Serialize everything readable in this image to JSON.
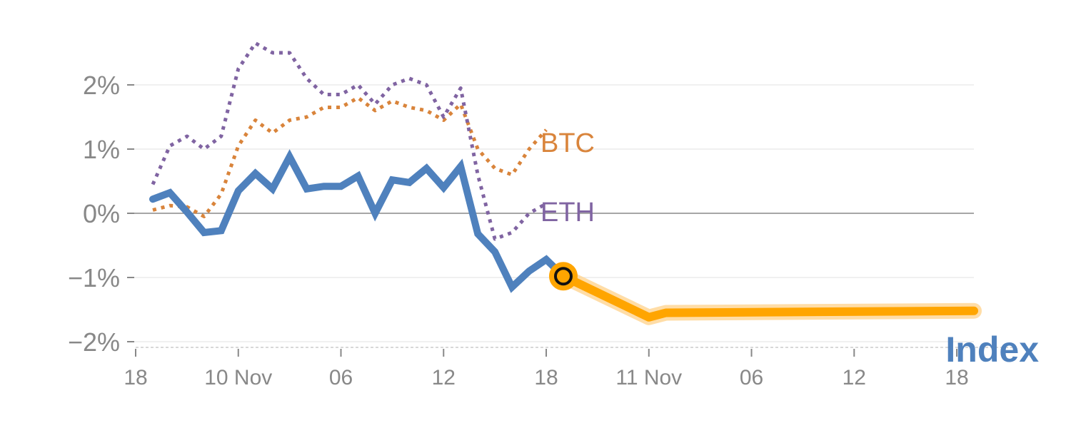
{
  "chart_data": {
    "type": "line",
    "ylim": [
      -2,
      2.6
    ],
    "yticks": [
      {
        "value": 2,
        "label": "2%"
      },
      {
        "value": 1,
        "label": "1%"
      },
      {
        "value": 0,
        "label": "0%"
      },
      {
        "value": -1,
        "label": "−1%"
      },
      {
        "value": -2,
        "label": "−2%"
      }
    ],
    "xlim": [
      0,
      49
    ],
    "xticks": [
      {
        "x": 0,
        "label": "18"
      },
      {
        "x": 6,
        "label": "10 Nov"
      },
      {
        "x": 12,
        "label": "06"
      },
      {
        "x": 18,
        "label": "12"
      },
      {
        "x": 24,
        "label": "18"
      },
      {
        "x": 30,
        "label": "11 Nov"
      },
      {
        "x": 36,
        "label": "06"
      },
      {
        "x": 42,
        "label": "12"
      },
      {
        "x": 48,
        "label": "18"
      }
    ],
    "grid": true,
    "colors": {
      "index": "#4f81bd",
      "btc": "#d9843b",
      "eth": "#8064a2",
      "projection": "#ffa500",
      "grid": "#e6e6e6",
      "zero": "#888888"
    },
    "series": [
      {
        "name": "BTC",
        "style": "dotted",
        "x": [
          1,
          2,
          3,
          4,
          5,
          6,
          7,
          8,
          9,
          10,
          11,
          12,
          13,
          14,
          15,
          16,
          17,
          18,
          19,
          20,
          21,
          22,
          23,
          24
        ],
        "values": [
          0.05,
          0.12,
          0.1,
          -0.05,
          0.3,
          1.05,
          1.45,
          1.25,
          1.45,
          1.5,
          1.65,
          1.65,
          1.8,
          1.6,
          1.75,
          1.65,
          1.6,
          1.45,
          1.7,
          1.0,
          0.7,
          0.6,
          1.0,
          1.3
        ]
      },
      {
        "name": "ETH",
        "style": "dotted",
        "x": [
          1,
          2,
          3,
          4,
          5,
          6,
          7,
          8,
          9,
          10,
          11,
          12,
          13,
          14,
          15,
          16,
          17,
          18,
          19,
          20,
          21,
          22,
          23,
          24
        ],
        "values": [
          0.45,
          1.05,
          1.2,
          1.0,
          1.2,
          2.25,
          2.65,
          2.5,
          2.5,
          2.1,
          1.85,
          1.85,
          2.0,
          1.7,
          2.0,
          2.1,
          2.0,
          1.5,
          1.95,
          0.6,
          -0.4,
          -0.3,
          0.0,
          0.15
        ]
      },
      {
        "name": "Index",
        "style": "solid",
        "x": [
          1,
          2,
          3,
          4,
          5,
          6,
          7,
          8,
          9,
          10,
          11,
          12,
          13,
          14,
          15,
          16,
          17,
          18,
          19,
          20,
          21,
          22,
          23,
          24,
          25
        ],
        "values": [
          0.22,
          0.32,
          0.02,
          -0.3,
          -0.27,
          0.35,
          0.62,
          0.38,
          0.88,
          0.38,
          0.42,
          0.42,
          0.58,
          0.0,
          0.52,
          0.48,
          0.7,
          0.4,
          0.73,
          -0.32,
          -0.6,
          -1.15,
          -0.9,
          -0.72,
          -0.98
        ]
      },
      {
        "name": "projection",
        "style": "thick",
        "x": [
          25,
          30,
          31,
          49
        ],
        "values": [
          -0.98,
          -1.62,
          -1.55,
          -1.52
        ]
      }
    ],
    "labels": {
      "btc": "BTC",
      "eth": "ETH",
      "index": "Index"
    }
  }
}
